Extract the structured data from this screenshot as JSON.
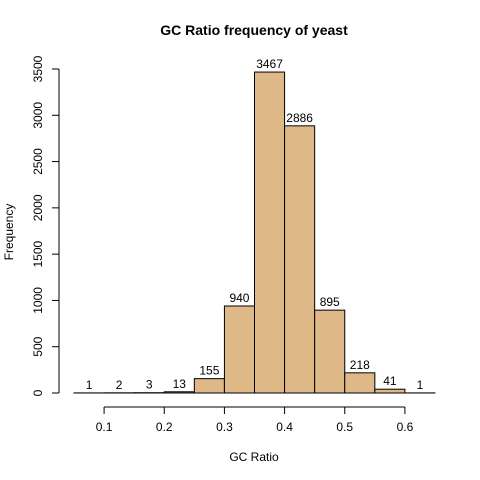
{
  "chart_data": {
    "type": "bar",
    "title": "GC Ratio frequency of yeast",
    "xlabel": "GC Ratio",
    "ylabel": "Frequency",
    "bin_edges": [
      0.05,
      0.1,
      0.15,
      0.2,
      0.25,
      0.3,
      0.35,
      0.4,
      0.45,
      0.5,
      0.55,
      0.6,
      0.65
    ],
    "values": [
      1,
      2,
      3,
      13,
      155,
      940,
      3467,
      2886,
      895,
      218,
      41,
      1
    ],
    "x_ticks": [
      0.1,
      0.2,
      0.3,
      0.4,
      0.5,
      0.6
    ],
    "x_tick_labels": [
      "0.1",
      "0.2",
      "0.3",
      "0.4",
      "0.5",
      "0.6"
    ],
    "y_ticks": [
      0,
      500,
      1000,
      1500,
      2000,
      2500,
      3000,
      3500
    ],
    "y_tick_labels": [
      "0",
      "500",
      "1000",
      "1500",
      "2000",
      "2500",
      "3000",
      "3500"
    ],
    "xlim": [
      0.05,
      0.65
    ],
    "ylim": [
      0,
      3500
    ],
    "bar_color": "#DEB887",
    "grid": false
  }
}
